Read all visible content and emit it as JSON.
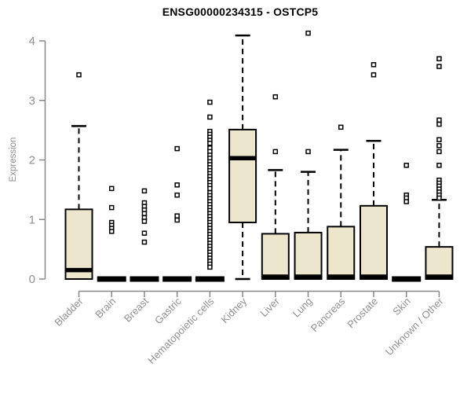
{
  "chart_data": {
    "type": "boxplot",
    "title": "ENSG00000234315 - OSTCP5",
    "ylabel": "Expression",
    "xlabel": "",
    "ylim": [
      0,
      4
    ],
    "yticks": [
      0,
      1,
      2,
      3,
      4
    ],
    "grid": false,
    "legend": "none",
    "box_fill": "#ECE7CC",
    "box_stroke": "#000000",
    "axis_color": "#888888",
    "tick_label_color": "#909090",
    "categories": [
      "Bladder",
      "Brain",
      "Breast",
      "Gastric",
      "Hematopoietic cells",
      "Kidney",
      "Liver",
      "Lung",
      "Pancreas",
      "Prostate",
      "Skin",
      "Unknown / Other"
    ],
    "boxes": [
      {
        "category": "Bladder",
        "low": 0,
        "q1": 0,
        "median": 0.15,
        "q3": 1.17,
        "high": 2.57,
        "outliers": [
          3.43
        ]
      },
      {
        "category": "Brain",
        "low": 0,
        "q1": 0,
        "median": 0,
        "q3": 0,
        "high": 0,
        "outliers": [
          1.52,
          1.2,
          0.95,
          0.9,
          0.85,
          0.8
        ]
      },
      {
        "category": "Breast",
        "low": 0,
        "q1": 0,
        "median": 0,
        "q3": 0,
        "high": 0,
        "outliers": [
          1.48,
          1.28,
          1.22,
          1.16,
          1.1,
          1.03,
          0.97,
          0.77,
          0.62
        ]
      },
      {
        "category": "Gastric",
        "low": 0,
        "q1": 0,
        "median": 0,
        "q3": 0,
        "high": 0,
        "outliers": [
          2.19,
          1.58,
          1.41,
          1.06,
          0.99
        ]
      },
      {
        "category": "Hematopoietic cells",
        "low": 0,
        "q1": 0,
        "median": 0,
        "q3": 0,
        "high": 0,
        "outliers": [
          2.97,
          2.72,
          2.48,
          2.43,
          2.38,
          2.33,
          2.28,
          2.2,
          2.14,
          2.08,
          2.03,
          1.97,
          1.92,
          1.87,
          1.82,
          1.77,
          1.72,
          1.67,
          1.62,
          1.57,
          1.52,
          1.45,
          1.4,
          1.35,
          1.3,
          1.25,
          1.2,
          1.15,
          1.1,
          1.05,
          1.0,
          0.95,
          0.9,
          0.85,
          0.8,
          0.75,
          0.7,
          0.65,
          0.6,
          0.55,
          0.5,
          0.45,
          0.4,
          0.35,
          0.3,
          0.25,
          0.2
        ]
      },
      {
        "category": "Kidney",
        "low": 0,
        "q1": 0.95,
        "median": 2.03,
        "q3": 2.51,
        "high": 4.09,
        "outliers": []
      },
      {
        "category": "Liver",
        "low": 0,
        "q1": 0,
        "median": 0.04,
        "q3": 0.76,
        "high": 1.83,
        "outliers": [
          3.06,
          2.14
        ]
      },
      {
        "category": "Lung",
        "low": 0,
        "q1": 0,
        "median": 0.04,
        "q3": 0.78,
        "high": 1.8,
        "outliers": [
          4.13,
          2.14
        ]
      },
      {
        "category": "Pancreas",
        "low": 0,
        "q1": 0,
        "median": 0.04,
        "q3": 0.88,
        "high": 2.17,
        "outliers": [
          2.55
        ]
      },
      {
        "category": "Prostate",
        "low": 0,
        "q1": 0,
        "median": 0.04,
        "q3": 1.23,
        "high": 2.32,
        "outliers": [
          3.6,
          3.43
        ]
      },
      {
        "category": "Skin",
        "low": 0,
        "q1": 0,
        "median": 0,
        "q3": 0,
        "high": 0,
        "outliers": [
          1.91,
          1.41,
          1.36,
          1.3
        ]
      },
      {
        "category": "Unknown / Other",
        "low": 0,
        "q1": 0,
        "median": 0.04,
        "q3": 0.54,
        "high": 1.33,
        "outliers": [
          3.7,
          3.57,
          2.67,
          2.6,
          2.34,
          2.24,
          2.14,
          1.91,
          1.66,
          1.61,
          1.56,
          1.51,
          1.46,
          1.41,
          1.36
        ]
      }
    ]
  }
}
